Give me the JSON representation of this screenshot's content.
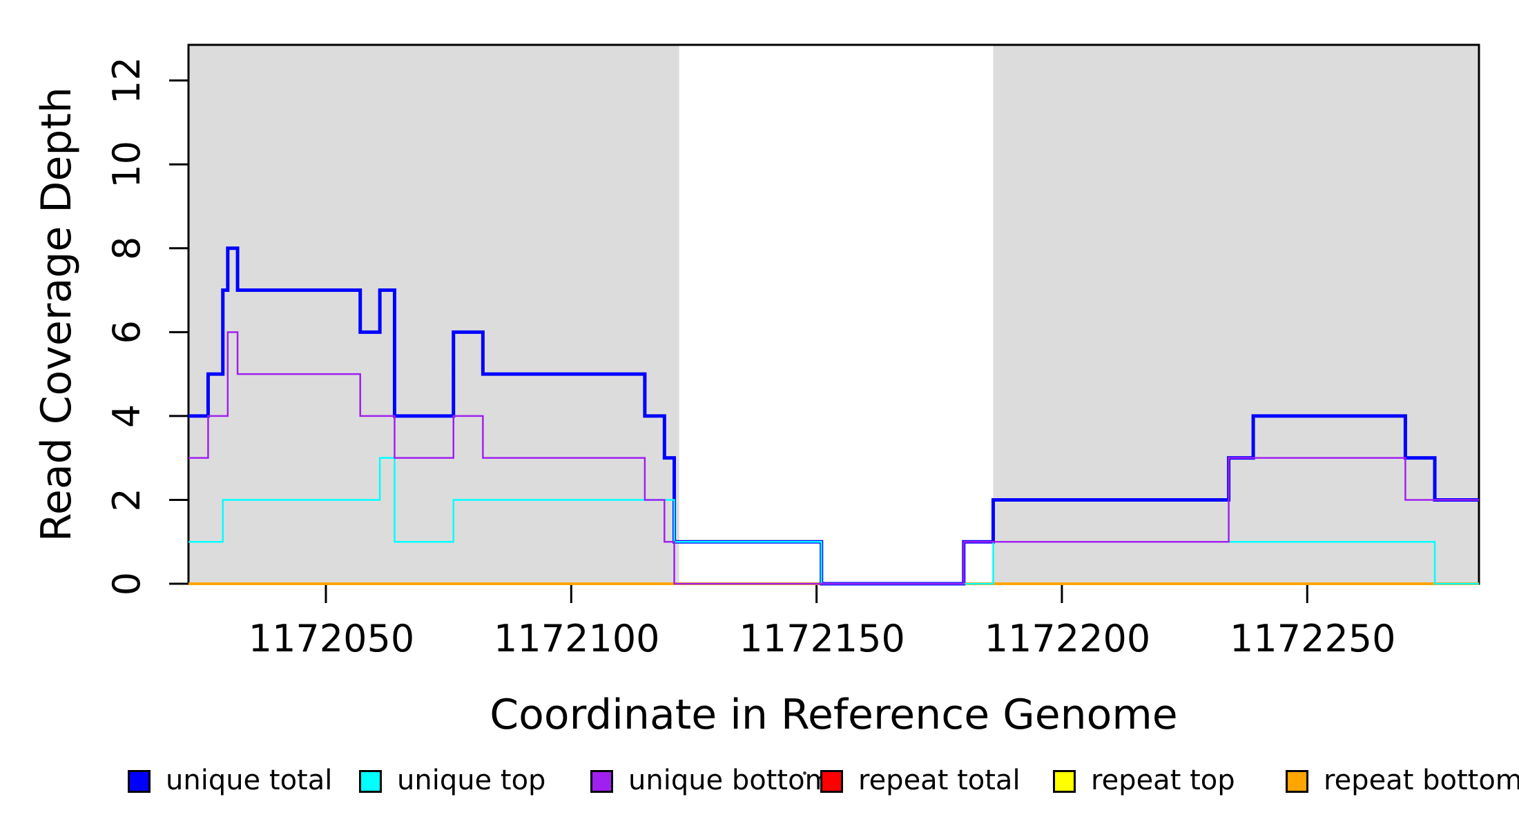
{
  "chart_data": {
    "type": "line",
    "subtype": "step-after",
    "title": "",
    "xlabel": "Coordinate in Reference Genome",
    "ylabel": "Read Coverage Depth",
    "xlim": [
      1172022,
      1172285
    ],
    "ylim": [
      0,
      12.85
    ],
    "x_ticks": [
      1172050,
      1172100,
      1172150,
      1172200,
      1172250
    ],
    "x_tick_labels": [
      "1172050",
      "1172100",
      "1172150",
      "1172200",
      "1172250"
    ],
    "y_ticks": [
      0,
      2,
      4,
      6,
      8,
      10,
      12
    ],
    "y_tick_labels": [
      "0",
      "2",
      "4",
      "6",
      "8",
      "10",
      "12"
    ],
    "grid": false,
    "plot_background": "#ffffff",
    "shaded_regions": [
      {
        "name": "repeat-region-left",
        "from": 1172022,
        "to": 1172122,
        "color": "#dcdcdc"
      },
      {
        "name": "repeat-region-right",
        "from": 1172186,
        "to": 1172285,
        "color": "#dcdcdc"
      }
    ],
    "x_end": 1172285,
    "series": [
      {
        "name": "repeat total",
        "color": "#ff0000",
        "width": 4,
        "steps": [
          [
            1172022,
            0
          ]
        ]
      },
      {
        "name": "repeat top",
        "color": "#ffff00",
        "width": 4,
        "steps": [
          [
            1172022,
            0
          ]
        ]
      },
      {
        "name": "repeat bottom",
        "color": "#ffa500",
        "width": 4,
        "steps": [
          [
            1172022,
            0
          ]
        ]
      },
      {
        "name": "unique total",
        "color": "#0000ff",
        "width": 5,
        "steps": [
          [
            1172022,
            4
          ],
          [
            1172026,
            5
          ],
          [
            1172029,
            7
          ],
          [
            1172030,
            8
          ],
          [
            1172032,
            7
          ],
          [
            1172057,
            6
          ],
          [
            1172061,
            7
          ],
          [
            1172064,
            4
          ],
          [
            1172076,
            6
          ],
          [
            1172082,
            5
          ],
          [
            1172115,
            4
          ],
          [
            1172119,
            3
          ],
          [
            1172121,
            1
          ],
          [
            1172151,
            0
          ],
          [
            1172180,
            1
          ],
          [
            1172186,
            2
          ],
          [
            1172234,
            3
          ],
          [
            1172239,
            4
          ],
          [
            1172270,
            3
          ],
          [
            1172276,
            2
          ]
        ]
      },
      {
        "name": "unique top",
        "color": "#00ffff",
        "width": 2.5,
        "steps": [
          [
            1172022,
            1
          ],
          [
            1172029,
            2
          ],
          [
            1172061,
            3
          ],
          [
            1172064,
            1
          ],
          [
            1172076,
            2
          ],
          [
            1172121,
            1
          ],
          [
            1172151,
            0
          ],
          [
            1172186,
            1
          ],
          [
            1172276,
            0
          ]
        ]
      },
      {
        "name": "unique bottom",
        "color": "#a020f0",
        "width": 2.5,
        "steps": [
          [
            1172022,
            3
          ],
          [
            1172026,
            4
          ],
          [
            1172030,
            6
          ],
          [
            1172032,
            5
          ],
          [
            1172057,
            4
          ],
          [
            1172064,
            3
          ],
          [
            1172076,
            4
          ],
          [
            1172082,
            3
          ],
          [
            1172115,
            2
          ],
          [
            1172119,
            1
          ],
          [
            1172121,
            0
          ],
          [
            1172180,
            1
          ],
          [
            1172234,
            3
          ],
          [
            1172270,
            2
          ]
        ]
      }
    ],
    "legend_position": "bottom"
  },
  "legend": {
    "items": [
      {
        "label": "unique total",
        "color": "#0000ff"
      },
      {
        "label": "unique top",
        "color": "#00ffff"
      },
      {
        "label": "unique bottom",
        "color": "#a020f0"
      },
      {
        "label": "repeat total",
        "color": "#ff0000"
      },
      {
        "label": "repeat top",
        "color": "#ffff00"
      },
      {
        "label": "repeat bottom",
        "color": "#ffa500"
      }
    ]
  },
  "colors": {
    "axis": "#000000",
    "shaded_region": "#dcdcdc",
    "background": "#ffffff"
  }
}
